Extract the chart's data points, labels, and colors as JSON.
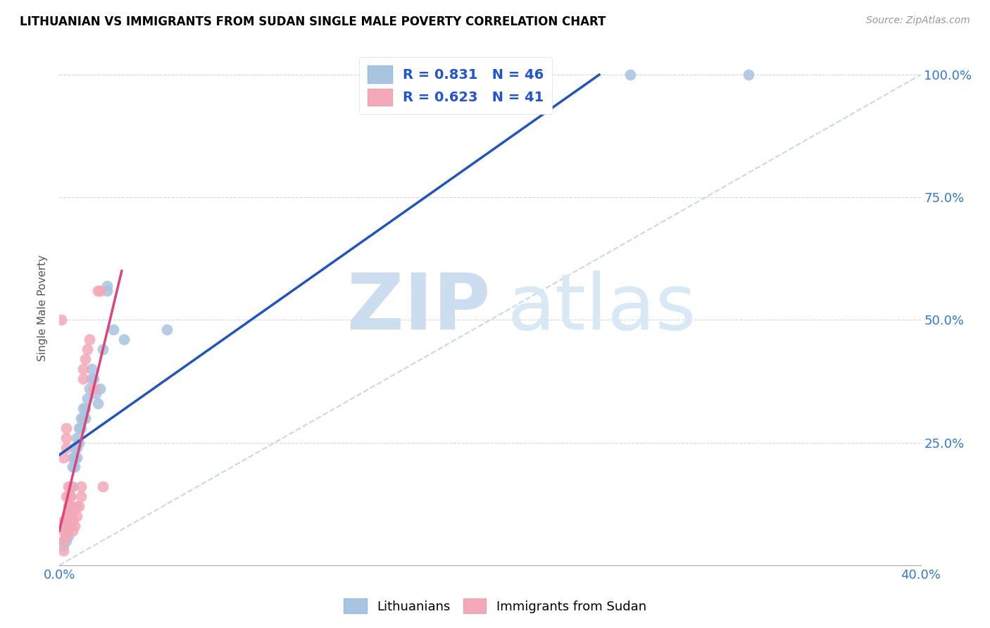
{
  "title": "LITHUANIAN VS IMMIGRANTS FROM SUDAN SINGLE MALE POVERTY CORRELATION CHART",
  "source": "Source: ZipAtlas.com",
  "ylabel": "Single Male Poverty",
  "x_min": 0.0,
  "x_max": 0.4,
  "y_min": 0.0,
  "y_max": 1.05,
  "blue_R": 0.831,
  "blue_N": 46,
  "pink_R": 0.623,
  "pink_N": 41,
  "blue_color": "#a8c4e0",
  "pink_color": "#f4a8b8",
  "blue_line_color": "#2255bb",
  "pink_line_color": "#dd4477",
  "diagonal_color": "#c8d8e8",
  "blue_points": [
    [
      0.002,
      0.04
    ],
    [
      0.002,
      0.05
    ],
    [
      0.003,
      0.05
    ],
    [
      0.003,
      0.06
    ],
    [
      0.003,
      0.07
    ],
    [
      0.004,
      0.06
    ],
    [
      0.004,
      0.08
    ],
    [
      0.004,
      0.1
    ],
    [
      0.005,
      0.08
    ],
    [
      0.005,
      0.1
    ],
    [
      0.005,
      0.12
    ],
    [
      0.005,
      0.14
    ],
    [
      0.006,
      0.16
    ],
    [
      0.006,
      0.2
    ],
    [
      0.006,
      0.22
    ],
    [
      0.007,
      0.2
    ],
    [
      0.007,
      0.22
    ],
    [
      0.007,
      0.24
    ],
    [
      0.008,
      0.22
    ],
    [
      0.008,
      0.24
    ],
    [
      0.008,
      0.26
    ],
    [
      0.009,
      0.25
    ],
    [
      0.009,
      0.28
    ],
    [
      0.01,
      0.28
    ],
    [
      0.01,
      0.3
    ],
    [
      0.011,
      0.3
    ],
    [
      0.011,
      0.32
    ],
    [
      0.012,
      0.3
    ],
    [
      0.012,
      0.32
    ],
    [
      0.013,
      0.34
    ],
    [
      0.014,
      0.36
    ],
    [
      0.015,
      0.38
    ],
    [
      0.015,
      0.4
    ],
    [
      0.016,
      0.38
    ],
    [
      0.017,
      0.35
    ],
    [
      0.018,
      0.33
    ],
    [
      0.019,
      0.36
    ],
    [
      0.02,
      0.44
    ],
    [
      0.022,
      0.56
    ],
    [
      0.022,
      0.57
    ],
    [
      0.025,
      0.48
    ],
    [
      0.03,
      0.46
    ],
    [
      0.05,
      0.48
    ],
    [
      0.155,
      1.0
    ],
    [
      0.265,
      1.0
    ],
    [
      0.32,
      1.0
    ]
  ],
  "pink_points": [
    [
      0.001,
      0.5
    ],
    [
      0.002,
      0.03
    ],
    [
      0.002,
      0.05
    ],
    [
      0.002,
      0.07
    ],
    [
      0.002,
      0.09
    ],
    [
      0.002,
      0.22
    ],
    [
      0.003,
      0.06
    ],
    [
      0.003,
      0.07
    ],
    [
      0.003,
      0.09
    ],
    [
      0.003,
      0.14
    ],
    [
      0.003,
      0.24
    ],
    [
      0.003,
      0.26
    ],
    [
      0.003,
      0.28
    ],
    [
      0.004,
      0.08
    ],
    [
      0.004,
      0.1
    ],
    [
      0.004,
      0.12
    ],
    [
      0.004,
      0.14
    ],
    [
      0.004,
      0.16
    ],
    [
      0.005,
      0.08
    ],
    [
      0.005,
      0.1
    ],
    [
      0.005,
      0.12
    ],
    [
      0.005,
      0.14
    ],
    [
      0.005,
      0.16
    ],
    [
      0.006,
      0.07
    ],
    [
      0.006,
      0.09
    ],
    [
      0.006,
      0.11
    ],
    [
      0.007,
      0.08
    ],
    [
      0.008,
      0.1
    ],
    [
      0.008,
      0.12
    ],
    [
      0.009,
      0.12
    ],
    [
      0.01,
      0.14
    ],
    [
      0.01,
      0.16
    ],
    [
      0.011,
      0.38
    ],
    [
      0.011,
      0.4
    ],
    [
      0.012,
      0.42
    ],
    [
      0.013,
      0.44
    ],
    [
      0.014,
      0.46
    ],
    [
      0.016,
      0.36
    ],
    [
      0.018,
      0.56
    ],
    [
      0.019,
      0.56
    ],
    [
      0.02,
      0.16
    ]
  ]
}
